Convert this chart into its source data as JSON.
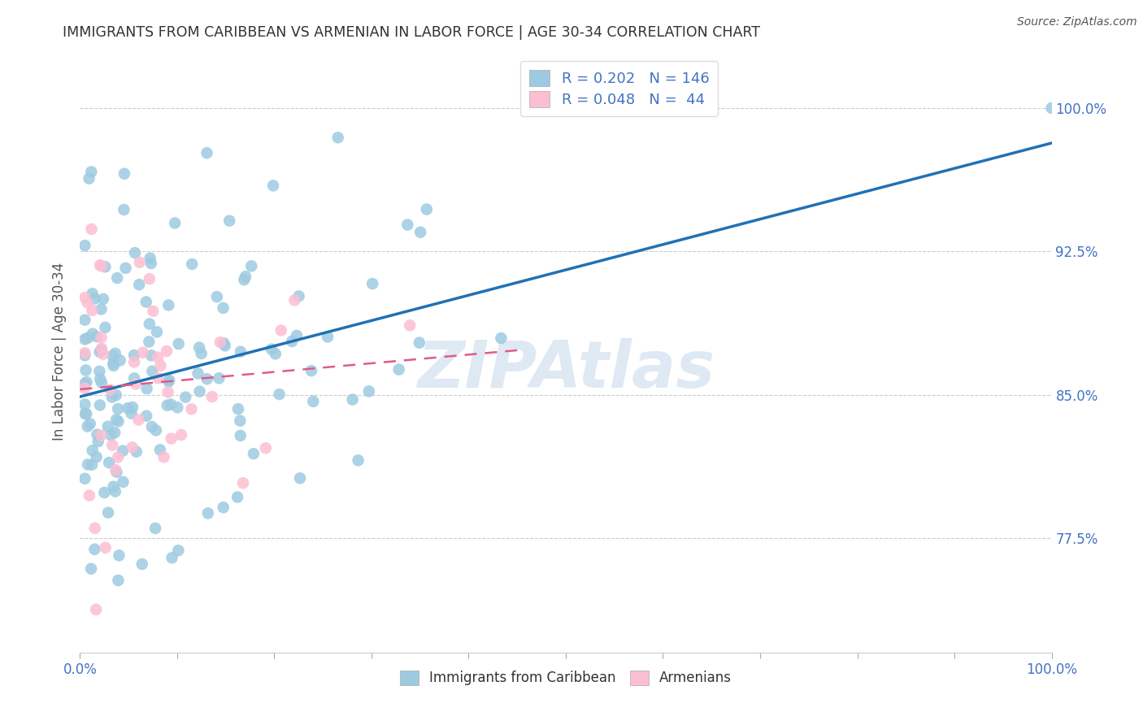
{
  "title": "IMMIGRANTS FROM CARIBBEAN VS ARMENIAN IN LABOR FORCE | AGE 30-34 CORRELATION CHART",
  "source": "Source: ZipAtlas.com",
  "ylabel": "In Labor Force | Age 30-34",
  "yticks": [
    0.775,
    0.85,
    0.925,
    1.0
  ],
  "ytick_labels": [
    "77.5%",
    "85.0%",
    "92.5%",
    "100.0%"
  ],
  "xrange": [
    0.0,
    1.0
  ],
  "yrange": [
    0.715,
    1.03
  ],
  "legend_R1": "0.202",
  "legend_N1": "146",
  "legend_R2": "0.048",
  "legend_N2": "44",
  "watermark": "ZIPAtlas",
  "blue_color": "#9ecae1",
  "pink_color": "#fcbfd2",
  "blue_line_color": "#2171b5",
  "pink_line_color": "#e05a8a",
  "axis_label_color": "#4472c4",
  "grid_color": "#cccccc",
  "legend_R_color": "#4472c4"
}
